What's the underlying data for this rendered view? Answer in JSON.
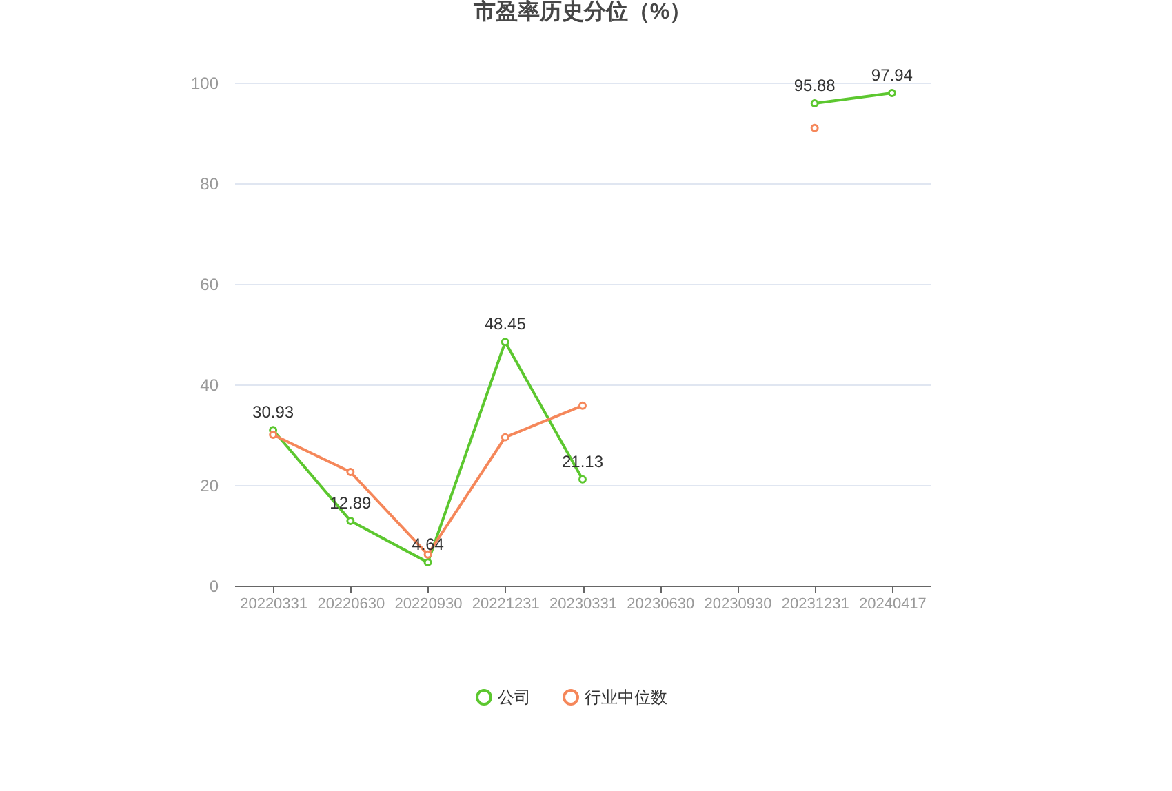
{
  "chart_data": {
    "type": "line",
    "title": "市盈率历史分位（%）",
    "categories": [
      "20220331",
      "20220630",
      "20220930",
      "20221231",
      "20230331",
      "20230630",
      "20230930",
      "20231231",
      "20240417"
    ],
    "series": [
      {
        "name": "公司",
        "color": "#5cc72f",
        "values": [
          30.93,
          12.89,
          4.64,
          48.45,
          21.13,
          null,
          null,
          95.88,
          97.94
        ],
        "value_labels": [
          "30.93",
          "12.89",
          "4.64",
          "48.45",
          "21.13",
          null,
          null,
          "95.88",
          "97.94"
        ]
      },
      {
        "name": "行业中位数",
        "color": "#f5875a",
        "values": [
          30.0,
          22.6,
          6.2,
          29.5,
          35.8,
          null,
          null,
          91.0,
          null
        ]
      }
    ],
    "ylim": [
      0,
      100
    ],
    "yticks": [
      0,
      20,
      40,
      60,
      80,
      100
    ],
    "grid": "y",
    "legend": "bottom",
    "marker": "circle"
  }
}
